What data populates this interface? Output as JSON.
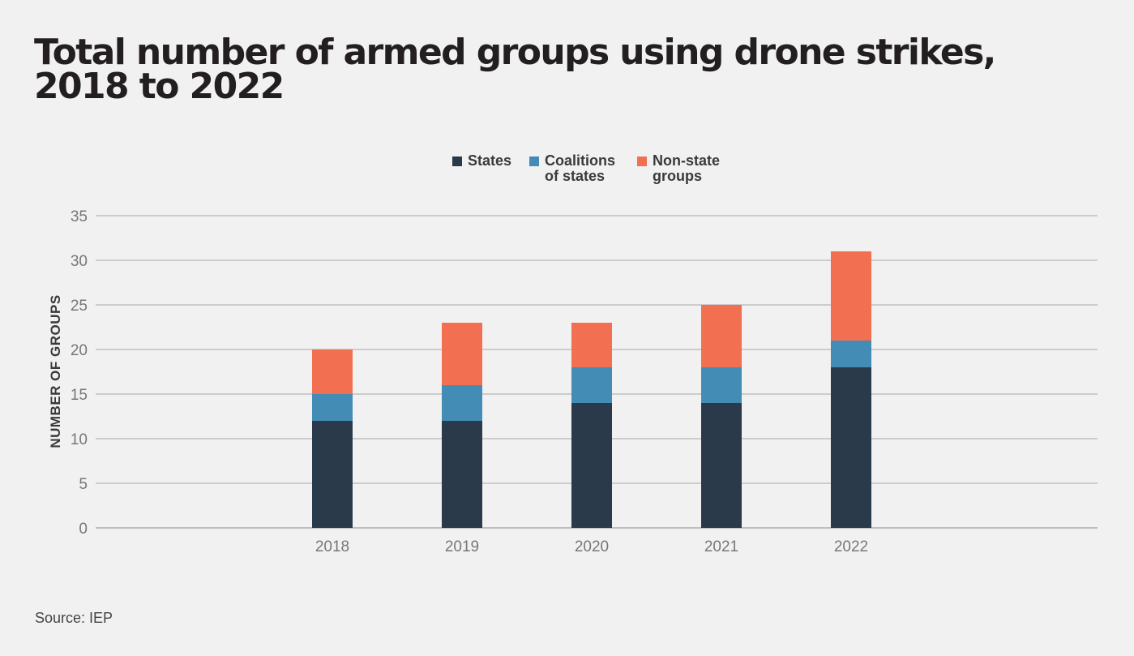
{
  "title_line1": "Total number of armed groups using drone strikes,",
  "title_line2": "2018 to 2022",
  "source": "Source: IEP",
  "colors": {
    "states": "#2a3a4a",
    "coalitions": "#438cb6",
    "non_state": "#f26f52",
    "grid": "#a8a8a8",
    "axis": "#8a8a8a"
  },
  "chart_data": {
    "type": "bar",
    "stacked": true,
    "title": "Total number of armed groups using drone strikes, 2018 to 2022",
    "xlabel": "",
    "ylabel": "NUMBER OF GROUPS",
    "categories": [
      "2018",
      "2019",
      "2020",
      "2021",
      "2022"
    ],
    "ylim": [
      0,
      35
    ],
    "yticks": [
      0,
      5,
      10,
      15,
      20,
      25,
      30,
      35
    ],
    "grid": true,
    "legend_position": "top-center",
    "series": [
      {
        "key": "states",
        "name": "States",
        "values": [
          12,
          12,
          14,
          14,
          18
        ]
      },
      {
        "key": "coalitions",
        "name": "Coalitions\nof states",
        "values": [
          3,
          4,
          4,
          4,
          3
        ]
      },
      {
        "key": "non_state",
        "name": "Non-state\ngroups",
        "values": [
          5,
          7,
          5,
          7,
          10
        ]
      }
    ]
  }
}
